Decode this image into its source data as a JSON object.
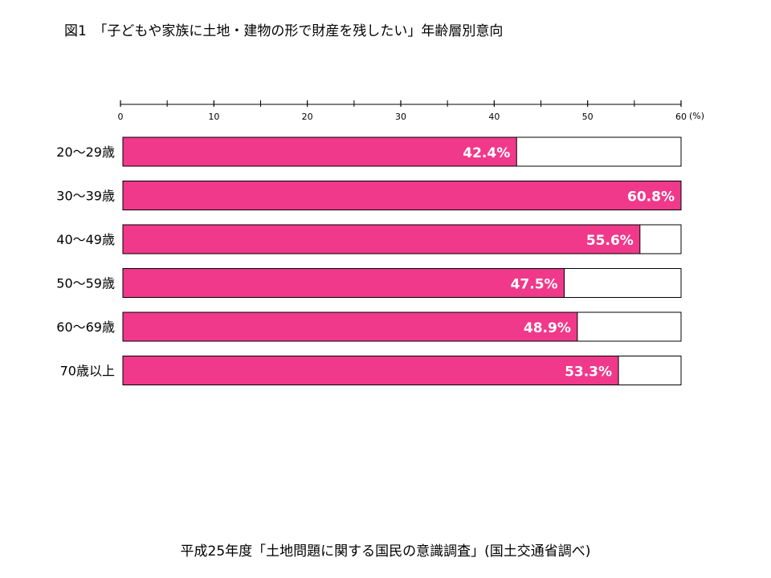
{
  "title": "図1　「子どもや家族に土地・建物の形で財産を残したい」年齢層別意向",
  "source": "平成25年度「土地問題に関する国民の意識調査」(国土交通省調べ)",
  "chart_data": {
    "type": "bar",
    "orientation": "horizontal",
    "categories": [
      "20～29歳",
      "30～39歳",
      "40～49歳",
      "50～59歳",
      "60～69歳",
      "70歳以上"
    ],
    "values": [
      42.4,
      60.8,
      55.6,
      47.5,
      48.9,
      53.3
    ],
    "value_labels": [
      "42.4%",
      "60.8%",
      "55.6%",
      "47.5%",
      "48.9%",
      "53.3%"
    ],
    "xlim": [
      0,
      60
    ],
    "xticks": [
      0,
      10,
      20,
      30,
      40,
      50,
      60
    ],
    "xunit": "(%)",
    "axis_position": "top",
    "grid": false,
    "legend": "none",
    "bar_color": "#f0398a",
    "bar_outline_color": "#000000",
    "label_color": "#ffffff"
  }
}
